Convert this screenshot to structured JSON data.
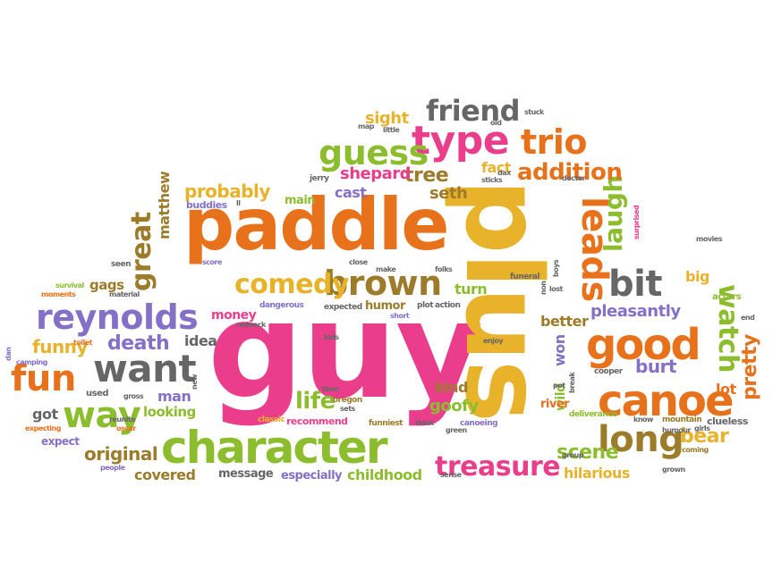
{
  "colors": {
    "orange": "#e8711c",
    "pink": "#ea3e8c",
    "yellow": "#e8b22a",
    "green": "#8cbd2e",
    "purple": "#8470c6",
    "olive": "#9c7c2a",
    "gray": "#666666"
  },
  "words": [
    "guy",
    "paddle",
    "plus",
    "character",
    "canoe",
    "good",
    "brown",
    "want",
    "reynolds",
    "way",
    "type",
    "guess",
    "fun",
    "trio",
    "leads",
    "bit",
    "long",
    "watch",
    "comedy",
    "treasure",
    "friend",
    "great",
    "laugh",
    "addition",
    "death",
    "life",
    "funny",
    "tree",
    "probably",
    "pretty",
    "bear",
    "scene",
    "pleasantly",
    "burt",
    "original",
    "covered",
    "childhood",
    "especially",
    "message",
    "goofy",
    "hilarious",
    "kind",
    "better",
    "won",
    "wild",
    "sight",
    "shepard",
    "cast",
    "seth",
    "fact",
    "looking",
    "man",
    "idea",
    "got",
    "expect",
    "money",
    "gags",
    "matthew",
    "turn",
    "humor",
    "big",
    "lot",
    "river",
    "buddies",
    "main",
    "jerry",
    "funeral",
    "actors",
    "recommend",
    "clueless",
    "mountain",
    "deliverance",
    "cooper",
    "canoeing",
    "funniest",
    "classic",
    "oregon",
    "dangerous",
    "redneck",
    "expected",
    "plot",
    "action",
    "short",
    "folks",
    "make",
    "close",
    "score",
    "seen",
    "moments",
    "survival",
    "material",
    "toilet",
    "camping",
    "dan",
    "used",
    "gross",
    "expecting",
    "reunite",
    "oscar",
    "people",
    "sense",
    "green",
    "group",
    "grown",
    "coming",
    "humour",
    "girls",
    "know",
    "pot",
    "break",
    "sticks",
    "dax",
    "doctor",
    "surprised",
    "movies",
    "boys",
    "non",
    "end",
    "ll",
    "stuck",
    "old",
    "little",
    "map",
    "enjoy",
    "kids",
    "time",
    "think",
    "sets",
    "lost",
    "new"
  ]
}
